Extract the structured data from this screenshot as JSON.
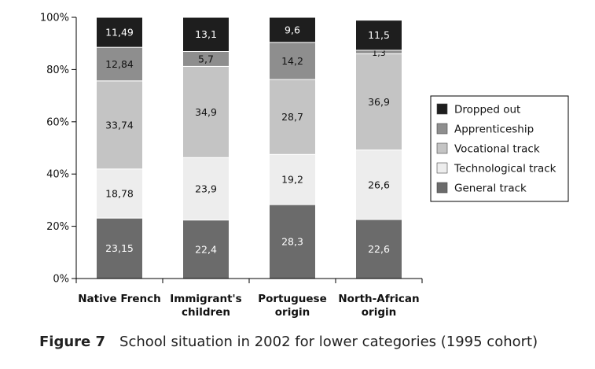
{
  "chart_data": {
    "type": "bar",
    "stacked": true,
    "title": "",
    "xlabel": "",
    "ylabel": "",
    "ylim": [
      0,
      100
    ],
    "yticks": [
      "0%",
      "20%",
      "40%",
      "60%",
      "80%",
      "100%"
    ],
    "grid": false,
    "legend_position": "right",
    "categories": [
      [
        "Native French"
      ],
      [
        "Immigrant's",
        "children"
      ],
      [
        "Portuguese",
        "origin"
      ],
      [
        "North-African",
        "origin"
      ]
    ],
    "series": [
      {
        "name": "General track",
        "color": "#6b6b6b",
        "text_color": "#ffffff",
        "values": [
          23.15,
          22.4,
          28.3,
          22.6
        ],
        "labels": [
          "23,15",
          "22,4",
          "28,3",
          "22,6"
        ]
      },
      {
        "name": "Technological track",
        "color": "#ededed",
        "text_color": "#111111",
        "values": [
          18.78,
          23.9,
          19.2,
          26.6
        ],
        "labels": [
          "18,78",
          "23,9",
          "19,2",
          "26,6"
        ]
      },
      {
        "name": "Vocational track",
        "color": "#c4c4c4",
        "text_color": "#111111",
        "values": [
          33.74,
          34.9,
          28.7,
          36.9
        ],
        "labels": [
          "33,74",
          "34,9",
          "28,7",
          "36,9"
        ]
      },
      {
        "name": "Apprenticeship",
        "color": "#8e8e8e",
        "text_color": "#111111",
        "values": [
          12.84,
          5.7,
          14.2,
          1.3
        ],
        "labels": [
          "12,84",
          "5,7",
          "14,2",
          "1,3"
        ]
      },
      {
        "name": "Dropped out",
        "color": "#1e1e1e",
        "text_color": "#ffffff",
        "values": [
          11.49,
          13.1,
          9.6,
          11.5
        ],
        "labels": [
          "11,49",
          "13,1",
          "9,6",
          "11,5"
        ]
      }
    ],
    "legend_order": [
      "Dropped out",
      "Apprenticeship",
      "Vocational track",
      "Technological track",
      "General track"
    ]
  },
  "caption": {
    "figure_label": "Figure 7",
    "text": "School situation in 2002 for lower categories (1995 cohort)"
  }
}
